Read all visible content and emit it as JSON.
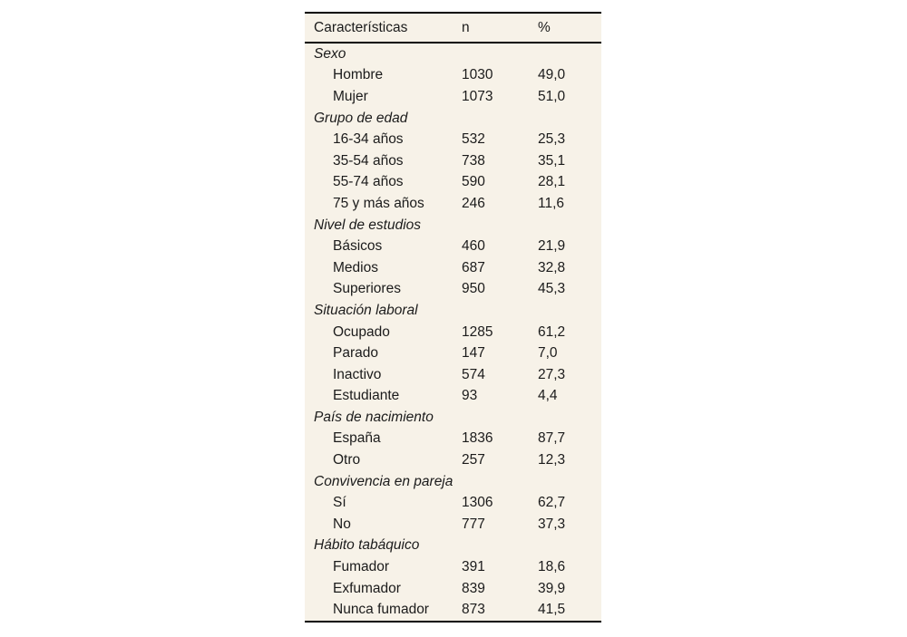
{
  "page": {
    "background": "#ffffff"
  },
  "table": {
    "background": "#f7f2e8",
    "border_color": "#000000",
    "text_color": "#1b1b1b",
    "columns": [
      "Características",
      "n",
      "%"
    ],
    "sections": [
      {
        "label": "Sexo",
        "rows": [
          {
            "label": "Hombre",
            "n": "1030",
            "pct": "49,0"
          },
          {
            "label": "Mujer",
            "n": "1073",
            "pct": "51,0"
          }
        ]
      },
      {
        "label": "Grupo de edad",
        "rows": [
          {
            "label": "16-34 años",
            "n": "532",
            "pct": "25,3"
          },
          {
            "label": "35-54 años",
            "n": "738",
            "pct": "35,1"
          },
          {
            "label": "55-74 años",
            "n": "590",
            "pct": "28,1"
          },
          {
            "label": "75 y más años",
            "n": "246",
            "pct": "11,6"
          }
        ]
      },
      {
        "label": "Nivel de estudios",
        "rows": [
          {
            "label": "Básicos",
            "n": "460",
            "pct": "21,9"
          },
          {
            "label": "Medios",
            "n": "687",
            "pct": "32,8"
          },
          {
            "label": "Superiores",
            "n": "950",
            "pct": "45,3"
          }
        ]
      },
      {
        "label": "Situación laboral",
        "rows": [
          {
            "label": "Ocupado",
            "n": "1285",
            "pct": "61,2"
          },
          {
            "label": "Parado",
            "n": "147",
            "pct": "7,0"
          },
          {
            "label": "Inactivo",
            "n": "574",
            "pct": "27,3"
          },
          {
            "label": "Estudiante",
            "n": "93",
            "pct": "4,4"
          }
        ]
      },
      {
        "label": "País de nacimiento",
        "rows": [
          {
            "label": "España",
            "n": "1836",
            "pct": "87,7"
          },
          {
            "label": "Otro",
            "n": "257",
            "pct": "12,3"
          }
        ]
      },
      {
        "label": "Convivencia en pareja",
        "rows": [
          {
            "label": "Sí",
            "n": "1306",
            "pct": "62,7"
          },
          {
            "label": "No",
            "n": "777",
            "pct": "37,3"
          }
        ]
      },
      {
        "label": "Hábito tabáquico",
        "rows": [
          {
            "label": "Fumador",
            "n": "391",
            "pct": "18,6"
          },
          {
            "label": "Exfumador",
            "n": "839",
            "pct": "39,9"
          },
          {
            "label": "Nunca fumador",
            "n": "873",
            "pct": "41,5"
          }
        ]
      }
    ]
  }
}
